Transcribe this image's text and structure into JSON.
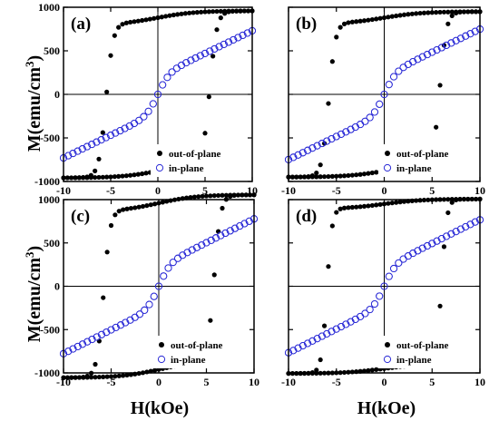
{
  "figure": {
    "ylabel": "M(emu/cm",
    "ylabel_sup": "3",
    "ylabel_close": ")",
    "xlabel": "H(kOe)"
  },
  "chart_data": [
    {
      "type": "scatter",
      "panel": "(a)",
      "xlim": [
        -10,
        10
      ],
      "ylim": [
        -1000,
        1000
      ],
      "xticks": [
        "-10",
        "-5",
        "0",
        "5",
        "10"
      ],
      "yticks": [
        "-1000",
        "-500",
        "0",
        "500",
        "1000"
      ],
      "legend_position": "bottom-right",
      "series": [
        {
          "name": "out-of-plane",
          "marker": "filled-circle",
          "color": "#000000",
          "Ms": 880,
          "Hc": 5.5,
          "width": 0.75,
          "tilt": 0.09
        },
        {
          "name": "in-plane",
          "marker": "open-circle",
          "color": "#2a2ad6",
          "Ms": 700,
          "slope": 52
        }
      ]
    },
    {
      "type": "scatter",
      "panel": "(b)",
      "xlim": [
        -10,
        10
      ],
      "ylim": [
        -1000,
        1000
      ],
      "xticks": [
        "-10",
        "-5",
        "0",
        "5",
        "10"
      ],
      "yticks": [
        "-1000",
        "-500",
        "0",
        "500",
        "1000"
      ],
      "legend_position": "bottom-right",
      "series": [
        {
          "name": "out-of-plane",
          "marker": "filled-circle",
          "color": "#000000",
          "Ms": 880,
          "Hc": 5.8,
          "width": 0.7,
          "tilt": 0.08
        },
        {
          "name": "in-plane",
          "marker": "open-circle",
          "color": "#2a2ad6",
          "Ms": 730,
          "slope": 53
        }
      ]
    },
    {
      "type": "scatter",
      "panel": "(c)",
      "xlim": [
        -10,
        10
      ],
      "ylim": [
        -1000,
        1000
      ],
      "xticks": [
        "-10",
        "-5",
        "0",
        "5",
        "10"
      ],
      "yticks": [
        "-1000",
        "-500",
        "0",
        "500",
        "1000"
      ],
      "legend_position": "bottom-right",
      "series": [
        {
          "name": "out-of-plane",
          "marker": "filled-circle",
          "color": "#000000",
          "Ms": 960,
          "Hc": 5.8,
          "width": 0.7,
          "tilt": 0.1
        },
        {
          "name": "in-plane",
          "marker": "open-circle",
          "color": "#2a2ad6",
          "Ms": 760,
          "slope": 55
        }
      ]
    },
    {
      "type": "scatter",
      "panel": "(d)",
      "xlim": [
        -10,
        10
      ],
      "ylim": [
        -1000,
        1000
      ],
      "xticks": [
        "-10",
        "-5",
        "0",
        "5",
        "10"
      ],
      "yticks": [
        "-1000",
        "-500",
        "0",
        "500",
        "1000"
      ],
      "legend_position": "bottom-right",
      "series": [
        {
          "name": "out-of-plane",
          "marker": "filled-circle",
          "color": "#000000",
          "Ms": 950,
          "Hc": 6.0,
          "width": 0.55,
          "tilt": 0.06
        },
        {
          "name": "in-plane",
          "marker": "open-circle",
          "color": "#2a2ad6",
          "Ms": 730,
          "slope": 55
        }
      ]
    }
  ]
}
